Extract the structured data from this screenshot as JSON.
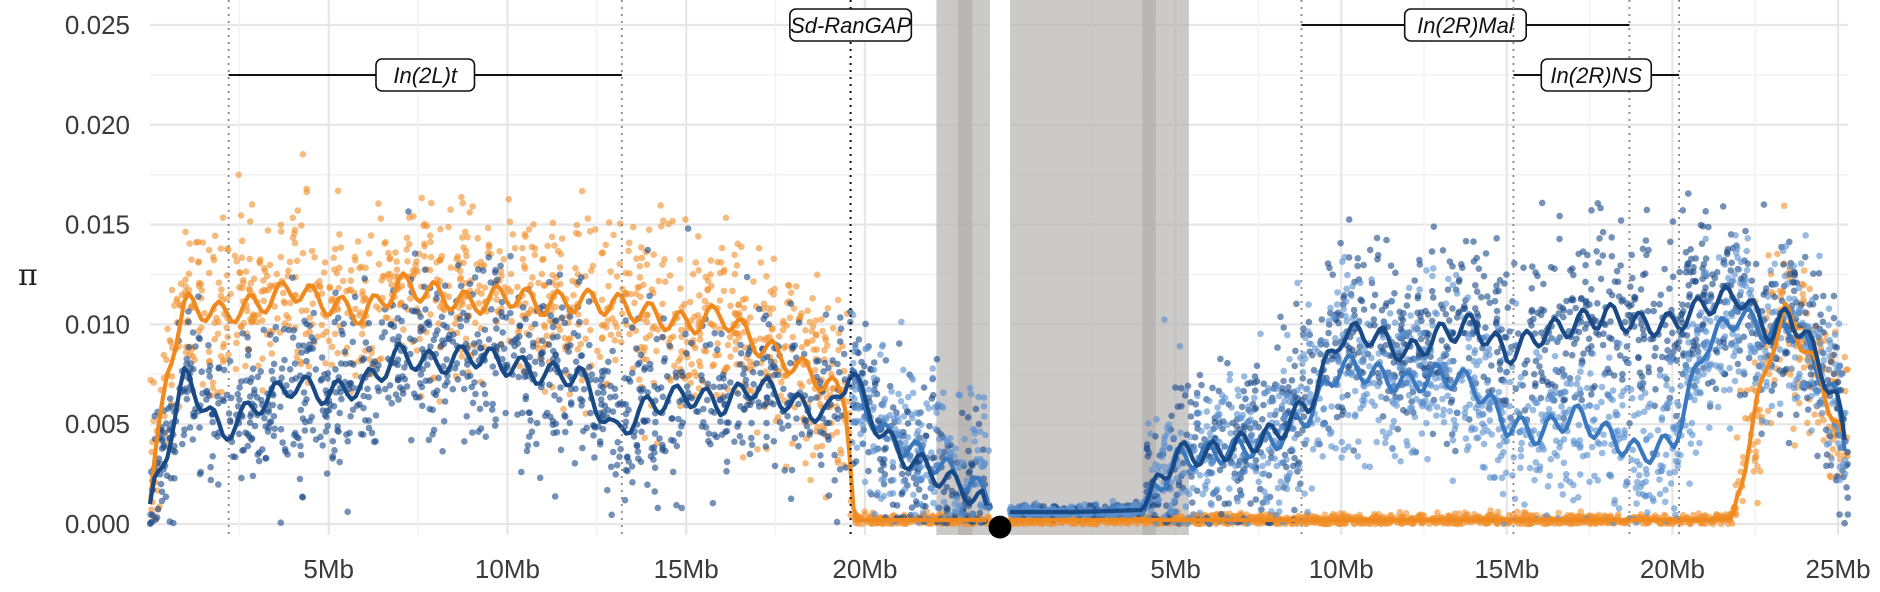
{
  "chart_data": {
    "type": "scatter",
    "ylabel": "π",
    "ylim": [
      0,
      0.026
    ],
    "y_ticks": [
      "0.000",
      "0.005",
      "0.010",
      "0.015",
      "0.020",
      "0.025"
    ],
    "y_tick_values": [
      0,
      0.005,
      0.01,
      0.015,
      0.02,
      0.025
    ],
    "grid": true,
    "panels": [
      {
        "name": "2L",
        "xlim_mb": [
          0,
          23.5
        ],
        "x_ticks": [
          "5Mb",
          "10Mb",
          "15Mb",
          "20Mb"
        ],
        "x_tick_values": [
          5,
          10,
          15,
          20
        ],
        "shaded_mb": [
          22.0,
          23.5
        ]
      },
      {
        "name": "2R",
        "xlim_mb": [
          0,
          25.3
        ],
        "x_ticks": [
          "5Mb",
          "10Mb",
          "15Mb",
          "20Mb",
          "25Mb"
        ],
        "x_tick_values": [
          5,
          10,
          15,
          20,
          25
        ],
        "shaded_mb": [
          0,
          5.4
        ]
      }
    ],
    "annotations": [
      {
        "label": "In(2L)t",
        "panel": 0,
        "start_mb": 2.2,
        "end_mb": 13.2
      },
      {
        "label": "Sd-RanGAP",
        "panel": 0,
        "at_mb": 19.6
      },
      {
        "label": "In(2R)Mal",
        "panel": 1,
        "start_mb": 8.8,
        "end_mb": 18.7
      },
      {
        "label": "In(2R)NS",
        "panel": 1,
        "start_mb": 15.2,
        "end_mb": 20.2
      }
    ],
    "centromere": "●",
    "series": [
      {
        "color": "#f0922e",
        "panel_2L": {
          "x": [
            0,
            0.5,
            1,
            2,
            3,
            4,
            5,
            6,
            7,
            8,
            9,
            10,
            11,
            12,
            13,
            14,
            15,
            16,
            17,
            18,
            19,
            19.5,
            19.7,
            23.5
          ],
          "y": [
            0.001,
            0.008,
            0.011,
            0.0105,
            0.011,
            0.0118,
            0.011,
            0.0105,
            0.012,
            0.0115,
            0.011,
            0.0115,
            0.011,
            0.0112,
            0.011,
            0.0105,
            0.01,
            0.0105,
            0.009,
            0.008,
            0.007,
            0.006,
            0.0002,
            0.0002
          ]
        },
        "panel_2R": {
          "x": [
            0,
            21,
            21.8,
            22.3,
            23,
            23.4,
            24,
            25,
            25.3
          ],
          "y": [
            0.0002,
            0.0002,
            0.0003,
            0.004,
            0.009,
            0.0105,
            0.009,
            0.005,
            0.003
          ]
        }
      },
      {
        "color": "#1f4e8a",
        "panel_2L": {
          "x": [
            0,
            0.5,
            1,
            2,
            3,
            4,
            5,
            6,
            7,
            8,
            9,
            10,
            11,
            12,
            13,
            14,
            15,
            16,
            17,
            18,
            19,
            19.6,
            20,
            20.5,
            21,
            22,
            23,
            23.5
          ],
          "y": [
            0.001,
            0.004,
            0.0075,
            0.0045,
            0.006,
            0.007,
            0.0065,
            0.007,
            0.0085,
            0.008,
            0.0085,
            0.008,
            0.0075,
            0.0075,
            0.0045,
            0.006,
            0.0065,
            0.006,
            0.007,
            0.006,
            0.0055,
            0.0078,
            0.006,
            0.0045,
            0.0035,
            0.0025,
            0.0015,
            0.0008
          ]
        },
        "panel_2R": {
          "x": [
            0,
            2,
            4,
            5,
            6,
            7,
            8,
            9,
            10,
            11,
            12,
            13,
            14,
            15,
            16,
            17,
            18,
            19,
            20,
            21,
            22,
            23,
            23.5,
            24,
            25,
            25.3
          ],
          "y": [
            0.0006,
            0.0006,
            0.0007,
            0.0035,
            0.0035,
            0.004,
            0.0045,
            0.006,
            0.0095,
            0.0095,
            0.0085,
            0.0095,
            0.01,
            0.0085,
            0.0095,
            0.01,
            0.0105,
            0.01,
            0.01,
            0.011,
            0.0115,
            0.0095,
            0.0105,
            0.0095,
            0.006,
            0.003
          ]
        }
      },
      {
        "color": "#5b8fcf",
        "panel_2L": {
          "x": [
            19.6,
            20,
            20.5,
            21,
            22,
            23,
            23.5
          ],
          "y": [
            0.0075,
            0.006,
            0.0045,
            0.004,
            0.003,
            0.002,
            0.0012
          ]
        },
        "panel_2R": {
          "x": [
            0,
            2,
            4,
            5,
            6,
            7,
            8,
            9,
            10,
            11,
            12,
            13,
            14,
            15,
            16,
            17,
            18,
            19,
            20,
            21,
            22,
            23,
            23.5,
            24,
            25,
            25.3
          ],
          "y": [
            0.0006,
            0.0006,
            0.0007,
            0.0032,
            0.0035,
            0.0038,
            0.0042,
            0.0055,
            0.008,
            0.0075,
            0.007,
            0.0075,
            0.007,
            0.005,
            0.0045,
            0.0055,
            0.0045,
            0.0035,
            0.004,
            0.009,
            0.0105,
            0.0095,
            0.01,
            0.009,
            0.006,
            0.003
          ]
        }
      }
    ]
  }
}
